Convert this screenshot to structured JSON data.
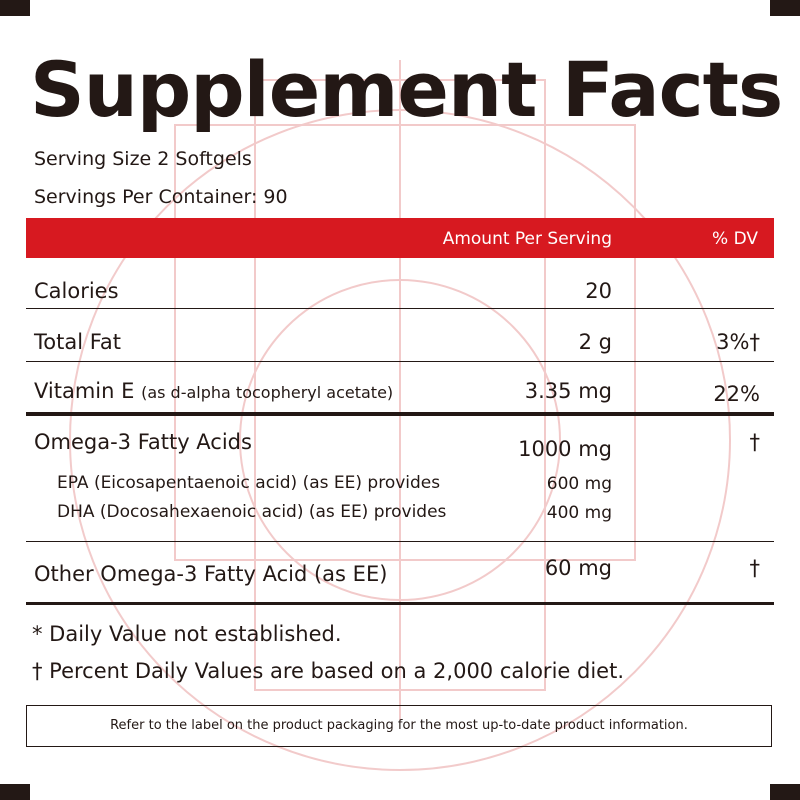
{
  "panel": {
    "title": "Supplement Facts",
    "serving_size": "Serving Size 2 Softgels",
    "servings_per_container": "Servings Per Container: 90"
  },
  "header": {
    "amount_label": "Amount Per Serving",
    "dv_label": "% DV",
    "bar_color": "#d71920"
  },
  "rows": [
    {
      "name": "Calories",
      "note": "",
      "amount": "20",
      "dv": ""
    },
    {
      "name": "Total Fat",
      "note": "",
      "amount": "2 g",
      "dv": "3%†"
    },
    {
      "name": "Vitamin E",
      "note": "(as d-alpha tocopheryl acetate)",
      "amount": "3.35 mg",
      "dv": "22%"
    },
    {
      "name": "Omega-3 Fatty Acids",
      "note": "",
      "amount": "1000 mg",
      "dv": "†"
    },
    {
      "name": "Other Omega-3 Fatty Acid (as EE)",
      "note": "",
      "amount": "60 mg",
      "dv": "†"
    }
  ],
  "subrows": [
    {
      "name": "EPA (Eicosapentaenoic acid) (as EE) provides",
      "amount": "600 mg"
    },
    {
      "name": "DHA (Docosahexaenoic acid) (as EE) provides",
      "amount": "400 mg"
    }
  ],
  "footnotes": {
    "daily_value": "* Daily Value not established.",
    "percent_basis": "† Percent Daily Values are based on a 2,000 calorie diet."
  },
  "disclaimer": "Refer to the label on the product packaging for the most up-to-date product information."
}
